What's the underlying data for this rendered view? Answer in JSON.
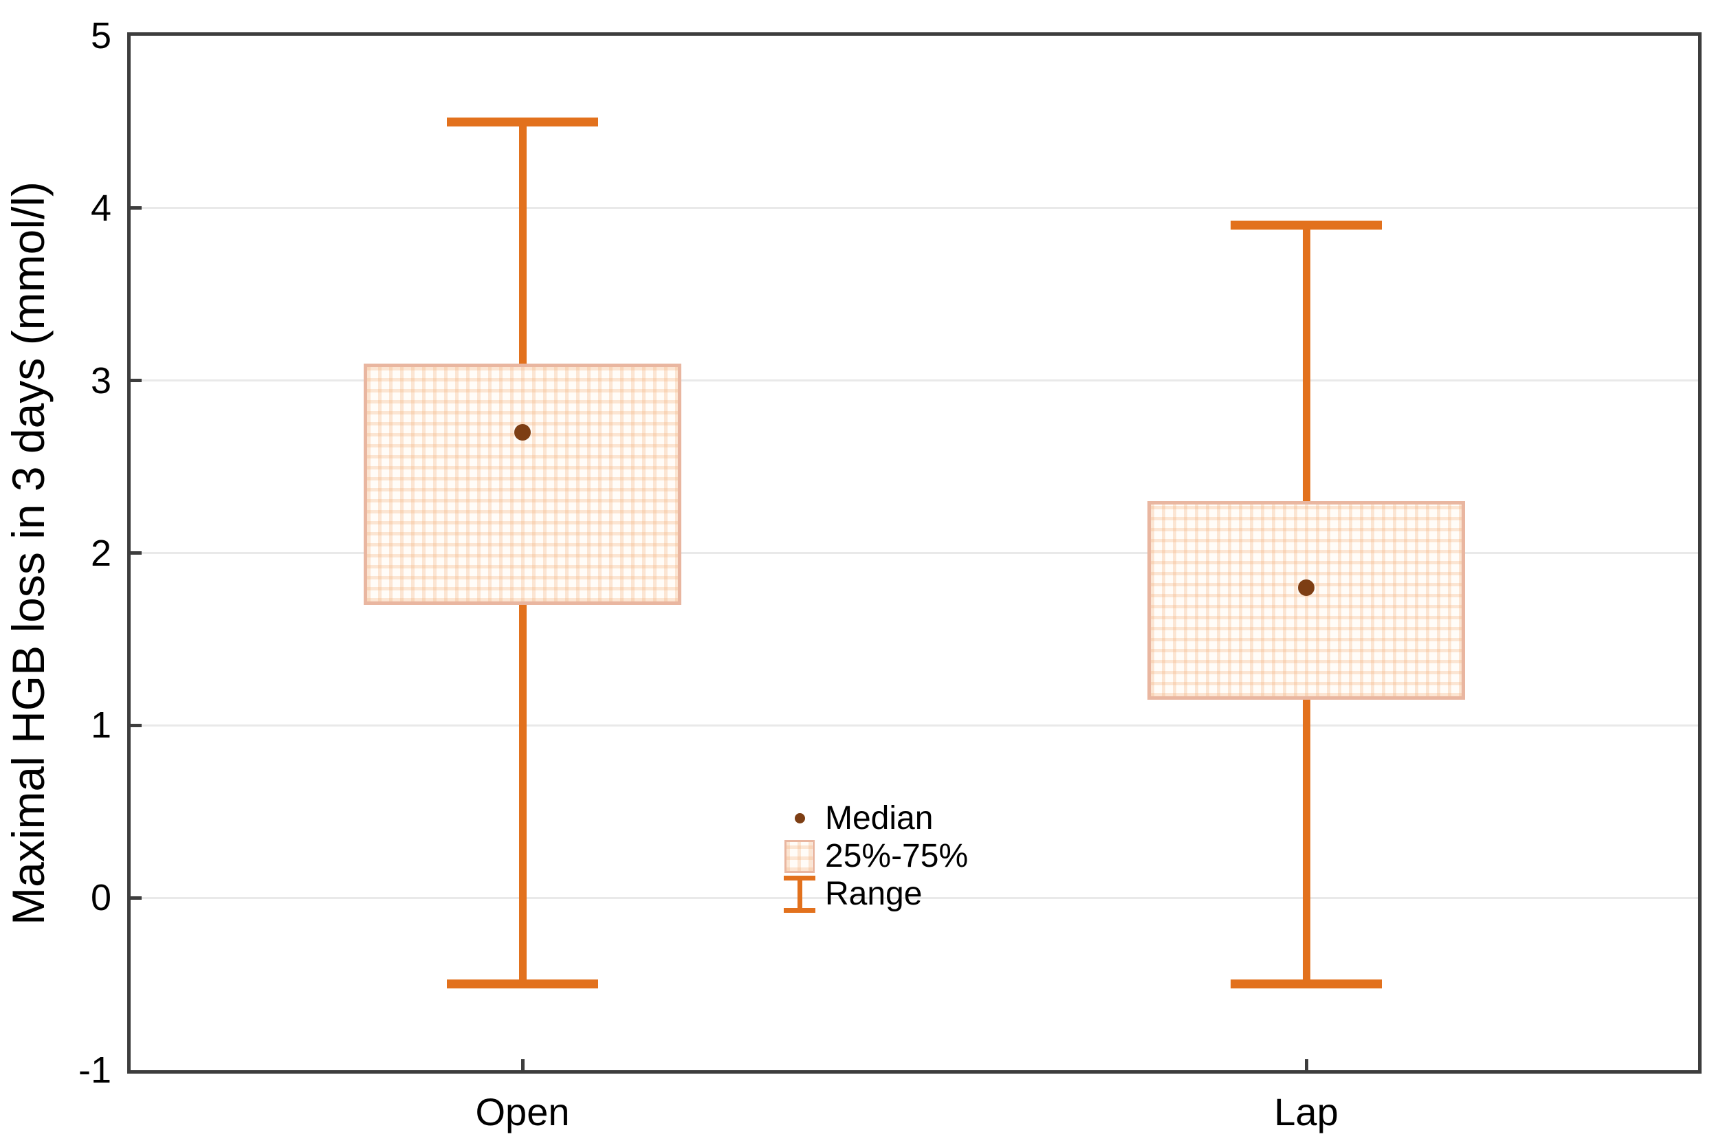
{
  "chart_data": {
    "type": "box",
    "ylabel": "Maximal HGB loss in 3 days (mmol/l)",
    "ylim": [
      -1,
      5
    ],
    "yticks": [
      5,
      4,
      3,
      2,
      1,
      0,
      -1
    ],
    "gridlines": [
      4,
      3,
      2,
      1,
      0
    ],
    "grid": true,
    "categories": [
      "Open",
      "Lap"
    ],
    "series": [
      {
        "name": "Open",
        "median": 2.7,
        "q25": 1.7,
        "q75": 3.1,
        "min": -0.5,
        "max": 4.5
      },
      {
        "name": "Lap",
        "median": 1.8,
        "q25": 1.15,
        "q75": 2.3,
        "min": -0.5,
        "max": 3.9
      }
    ],
    "legend": [
      {
        "icon": "median-dot-icon",
        "label": "Median"
      },
      {
        "icon": "quartile-box-icon",
        "label": "25%-75%"
      },
      {
        "icon": "range-whisker-icon",
        "label": "Range"
      }
    ],
    "legend_position": "inside-bottom-center"
  },
  "colors": {
    "whisker": "#e2711d",
    "median_dot": "#7d3e14",
    "box_border": "#e9b6a0",
    "box_fill": "#fffcf8",
    "box_pattern_line": "rgba(243,176,124,0.30)",
    "gridline": "#e9e9e9",
    "frame": "#3d3d3d",
    "text": "#000000",
    "background": "#ffffff"
  }
}
